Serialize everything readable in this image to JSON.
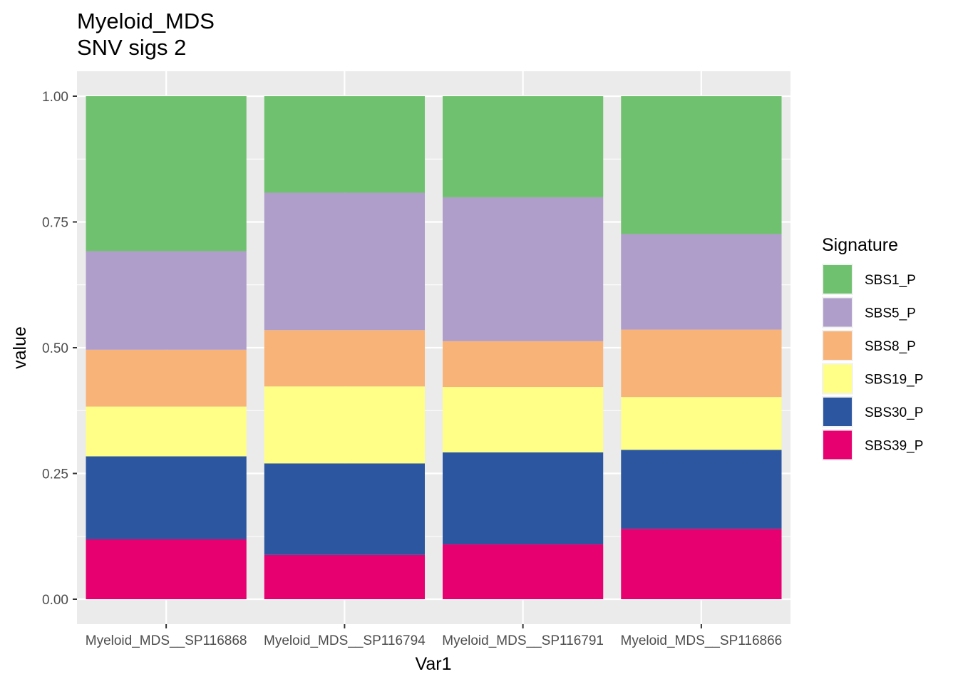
{
  "chart_data": {
    "type": "bar",
    "stacked": true,
    "title": "Myeloid_MDS",
    "subtitle": "SNV sigs 2",
    "xlabel": "Var1",
    "ylabel": "value",
    "ylim": [
      0,
      1
    ],
    "yticks": [
      "0.00",
      "0.25",
      "0.50",
      "0.75",
      "1.00"
    ],
    "ytick_values": [
      0,
      0.25,
      0.5,
      0.75,
      1.0
    ],
    "categories": [
      "Myeloid_MDS__SP116868",
      "Myeloid_MDS__SP116794",
      "Myeloid_MDS__SP116791",
      "Myeloid_MDS__SP116866"
    ],
    "legend_title": "Signature",
    "legend_position": "right",
    "grid": true,
    "series": [
      {
        "name": "SBS39_P",
        "color": "#e7006f",
        "values": [
          0.119,
          0.088,
          0.109,
          0.14
        ]
      },
      {
        "name": "SBS30_P",
        "color": "#2c57a0",
        "values": [
          0.165,
          0.182,
          0.183,
          0.157
        ]
      },
      {
        "name": "SBS19_P",
        "color": "#ffff87",
        "values": [
          0.099,
          0.153,
          0.13,
          0.105
        ]
      },
      {
        "name": "SBS8_P",
        "color": "#f8b378",
        "values": [
          0.113,
          0.112,
          0.091,
          0.134
        ]
      },
      {
        "name": "SBS5_P",
        "color": "#af9dca",
        "values": [
          0.196,
          0.273,
          0.286,
          0.19
        ]
      },
      {
        "name": "SBS1_P",
        "color": "#70c16f",
        "values": [
          0.308,
          0.192,
          0.201,
          0.274
        ]
      }
    ],
    "legend_order": [
      "SBS1_P",
      "SBS5_P",
      "SBS8_P",
      "SBS19_P",
      "SBS30_P",
      "SBS39_P"
    ]
  }
}
